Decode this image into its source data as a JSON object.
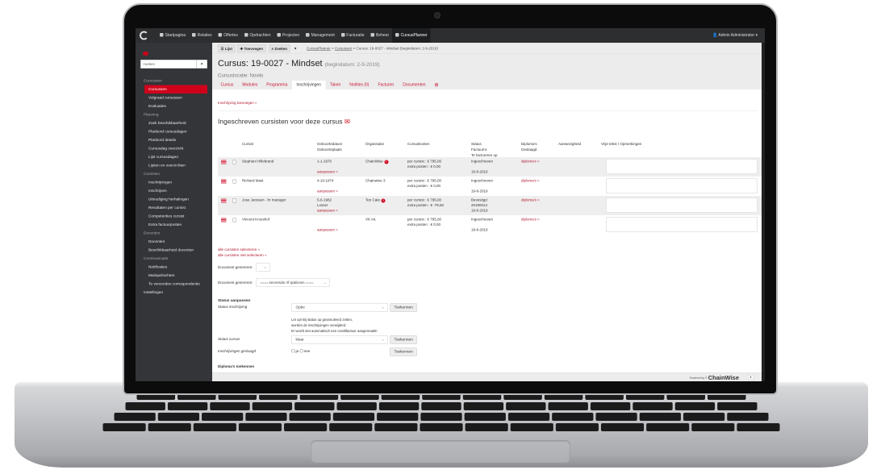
{
  "topbar": {
    "nav": [
      {
        "label": "Startpagina",
        "icon": "home-icon"
      },
      {
        "label": "Relaties",
        "icon": "users-icon"
      },
      {
        "label": "Offertes",
        "icon": "cart-icon"
      },
      {
        "label": "Opdrachten",
        "icon": "briefcase-icon"
      },
      {
        "label": "Projecten",
        "icon": "clock-icon"
      },
      {
        "label": "Management",
        "icon": "pie-chart-icon"
      },
      {
        "label": "Facturatie",
        "icon": "euro-icon"
      },
      {
        "label": "Beheer",
        "icon": "gears-icon"
      },
      {
        "label": "CursusPlanner",
        "icon": "calendar-icon",
        "active": true
      }
    ],
    "user": "Admin Administrator ▾"
  },
  "sidebar": {
    "search_placeholder": "zoeken",
    "items": [
      {
        "type": "section",
        "label": "Cursussen"
      },
      {
        "type": "item",
        "label": "Cursussen",
        "active": true
      },
      {
        "type": "item",
        "label": "Volgraad cursussen"
      },
      {
        "type": "item",
        "label": "Evaluaties"
      },
      {
        "type": "section",
        "label": "Planning"
      },
      {
        "type": "item",
        "label": "Zoek beschikbaarheid"
      },
      {
        "type": "item",
        "label": "Planbord cursusdagen"
      },
      {
        "type": "item",
        "label": "Planbord details"
      },
      {
        "type": "item",
        "label": "Cursusdag overzicht"
      },
      {
        "type": "item",
        "label": "Lijst cursusdagen"
      },
      {
        "type": "item",
        "label": "Lijsten en overzichten"
      },
      {
        "type": "section",
        "label": "Cursisten"
      },
      {
        "type": "item",
        "label": "Inschrijvingen"
      },
      {
        "type": "item",
        "label": "Inschrijven"
      },
      {
        "type": "item",
        "label": "Uitnodiging herhalingen"
      },
      {
        "type": "item",
        "label": "Resultaten per cursist"
      },
      {
        "type": "item",
        "label": "Competenties cursist"
      },
      {
        "type": "item",
        "label": "Extra factuurposten"
      },
      {
        "type": "section",
        "label": "Docenten"
      },
      {
        "type": "item",
        "label": "Docenten"
      },
      {
        "type": "item",
        "label": "Beschikbaarheid docenten"
      },
      {
        "type": "section",
        "label": "Communicatie"
      },
      {
        "type": "item",
        "label": "Notificaties"
      },
      {
        "type": "item",
        "label": "Mailopdrachten"
      },
      {
        "type": "item",
        "label": "Te verzenden correspondentie"
      },
      {
        "type": "top",
        "label": "Instellingen"
      }
    ]
  },
  "toolbar": {
    "list": "Lijst",
    "add": "Toevoegen",
    "search": "Zoeken",
    "more": "▾",
    "breadcrumb": [
      "CursusPlanner",
      "Cursussen",
      "Cursus: 19-0027 - Mindset (begindatum: 2-9-2019)"
    ],
    "sep": " > "
  },
  "header": {
    "title": "Cursus: 19-0027 - Mindset",
    "subtitle": "(begindatum: 2-9-2019)",
    "location": "Cursuslocatie: Novilo"
  },
  "tabs": [
    {
      "label": "Cursus"
    },
    {
      "label": "Modules"
    },
    {
      "label": "Programma"
    },
    {
      "label": "Inschrijvingen",
      "active": true
    },
    {
      "label": "Taken"
    },
    {
      "label": "Notities (0)"
    },
    {
      "label": "Facturen"
    },
    {
      "label": "Documenten"
    }
  ],
  "main": {
    "add_link": "Inschrijving toevoegen »",
    "heading": "Ingeschreven cursisten voor deze cursus",
    "columns": {
      "cursist": "Cursist",
      "geboorte1": "Geboortedatum",
      "geboorte2": "Geboorteplaats",
      "organisatie": "Organisatie",
      "kosten": "Cursuskosten",
      "status1": "Status",
      "status2": "Factuurnr.",
      "status3": "Te factureren op",
      "diploma1": "Diploma's",
      "diploma2": "Geslaagd",
      "aanwezigheid": "Aanwezigheid",
      "vrije": "Vrije tekst / Opmerkingen"
    },
    "rows": [
      {
        "name": "Stephani Hillebrand",
        "dob": "1-1-1970",
        "place": "",
        "edit": "aanpassen »",
        "org": "ChainWise",
        "org_alert": true,
        "cost1": "per cursist : € 795,00",
        "cost2": "extra posten : € 0,00",
        "status": "Ingeschreven",
        "invoice": "",
        "date": "19-8-2019",
        "diploma": "diploma's »"
      },
      {
        "name": "Richard Mast",
        "dob": "4-10-1974",
        "place": "",
        "edit": "aanpassen »",
        "org": "Chainwise 3",
        "org_alert": false,
        "cost1": "per cursist : € 795,00",
        "cost2": "extra posten : € 0,00",
        "status": "Ingeschreven",
        "invoice": "",
        "date": "19-8-2019",
        "diploma": "diploma's »"
      },
      {
        "name": "Jose Janssen - hr manager",
        "dob": "5-6-1982",
        "place": "Losser",
        "edit": "aanpassen »",
        "org": "Ten Cate",
        "org_alert": true,
        "cost1": "per cursist : € 795,00",
        "cost2": "extra posten : € -79,50",
        "status": "Bevestigd",
        "invoice": "20190014",
        "date": "19-8-2019",
        "diploma": "diploma's »"
      },
      {
        "name": "Vincent Kroeshof",
        "dob": "",
        "place": "",
        "edit": "aanpassen »",
        "org": "VK Int.",
        "org_alert": false,
        "cost1": "per cursist : € 795,00",
        "cost2": "extra posten : € 0,00",
        "status": "Ingeschreven",
        "invoice": "",
        "date": "19-8-2019",
        "diploma": "diploma's »"
      }
    ],
    "select_all": "alle cursisten selecteren »",
    "deselect_all": "alle cursisten niet selecteren »",
    "doc_label": "Document genereren:",
    "doc_select2": "==== serverside rtf sjablonen ====",
    "status_heading": "Status aanpassen",
    "status_inschrijving": "Status inschrijving",
    "status_inschrijving_value": "Optie",
    "assign": "Toekennen",
    "warning": [
      "Let op! Bij status op geannuleerd zetten,",
      "worden de inschrijvingen verwijderd.",
      "Er wordt niet automatisch een creditfactuur aangemaakt!"
    ],
    "status_cursus": "Status cursus",
    "status_cursus_value": "klaar",
    "geslaagd": "Inschrijvingen geslaagd",
    "ja": "ja",
    "nee": "nee",
    "diploma_heading": "Diploma's toekennen"
  },
  "footer": {
    "powered": "Powered by",
    "brand": "ChainWise",
    "up": "▲"
  },
  "colors": {
    "accent": "#d0021b",
    "topbar": "#2d2e30",
    "sidebar": "#333538"
  }
}
